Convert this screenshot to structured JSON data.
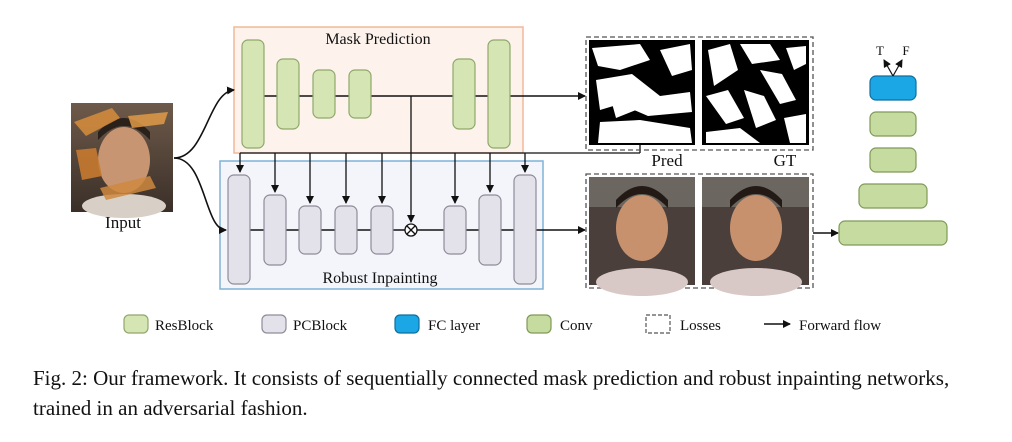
{
  "labels": {
    "mask_prediction": "Mask Prediction",
    "robust_inpainting": "Robust Inpainting",
    "input": "Input",
    "pred": "Pred",
    "gt": "GT",
    "true_label": "T",
    "false_label": "F"
  },
  "legend": [
    {
      "name": "legend-resblock",
      "label": "ResBlock",
      "kind": "block",
      "fill": "#d6e5b4",
      "stroke": "#8fa86a"
    },
    {
      "name": "legend-pcblock",
      "label": "PCBlock",
      "kind": "block",
      "fill": "#e3e1ea",
      "stroke": "#8f8c99"
    },
    {
      "name": "legend-fc-layer",
      "label": "FC layer",
      "kind": "block",
      "fill": "#1ba6e6",
      "stroke": "#0f6f9e"
    },
    {
      "name": "legend-conv",
      "label": "Conv",
      "kind": "block",
      "fill": "#c6dba0",
      "stroke": "#7f9a58"
    },
    {
      "name": "legend-losses",
      "label": "Losses",
      "kind": "dashed"
    },
    {
      "name": "legend-forward-flow",
      "label": "Forward flow",
      "kind": "arrow"
    }
  ],
  "caption": "Fig. 2: Our framework. It consists of sequentially connected mask prediction and robust inpainting networks, trained in an adversarial fashion.",
  "colors": {
    "resblock_fill": "#d6e5b4",
    "pcblock_fill": "#e3e1ea",
    "fc_fill": "#1ba6e6",
    "conv_fill": "#c6dba0",
    "mask_box_border": "#f0b89a",
    "mask_box_bg": "#fdf3ec",
    "inpaint_box_border": "#7fb2d8",
    "inpaint_box_bg": "#f3f5fa"
  }
}
